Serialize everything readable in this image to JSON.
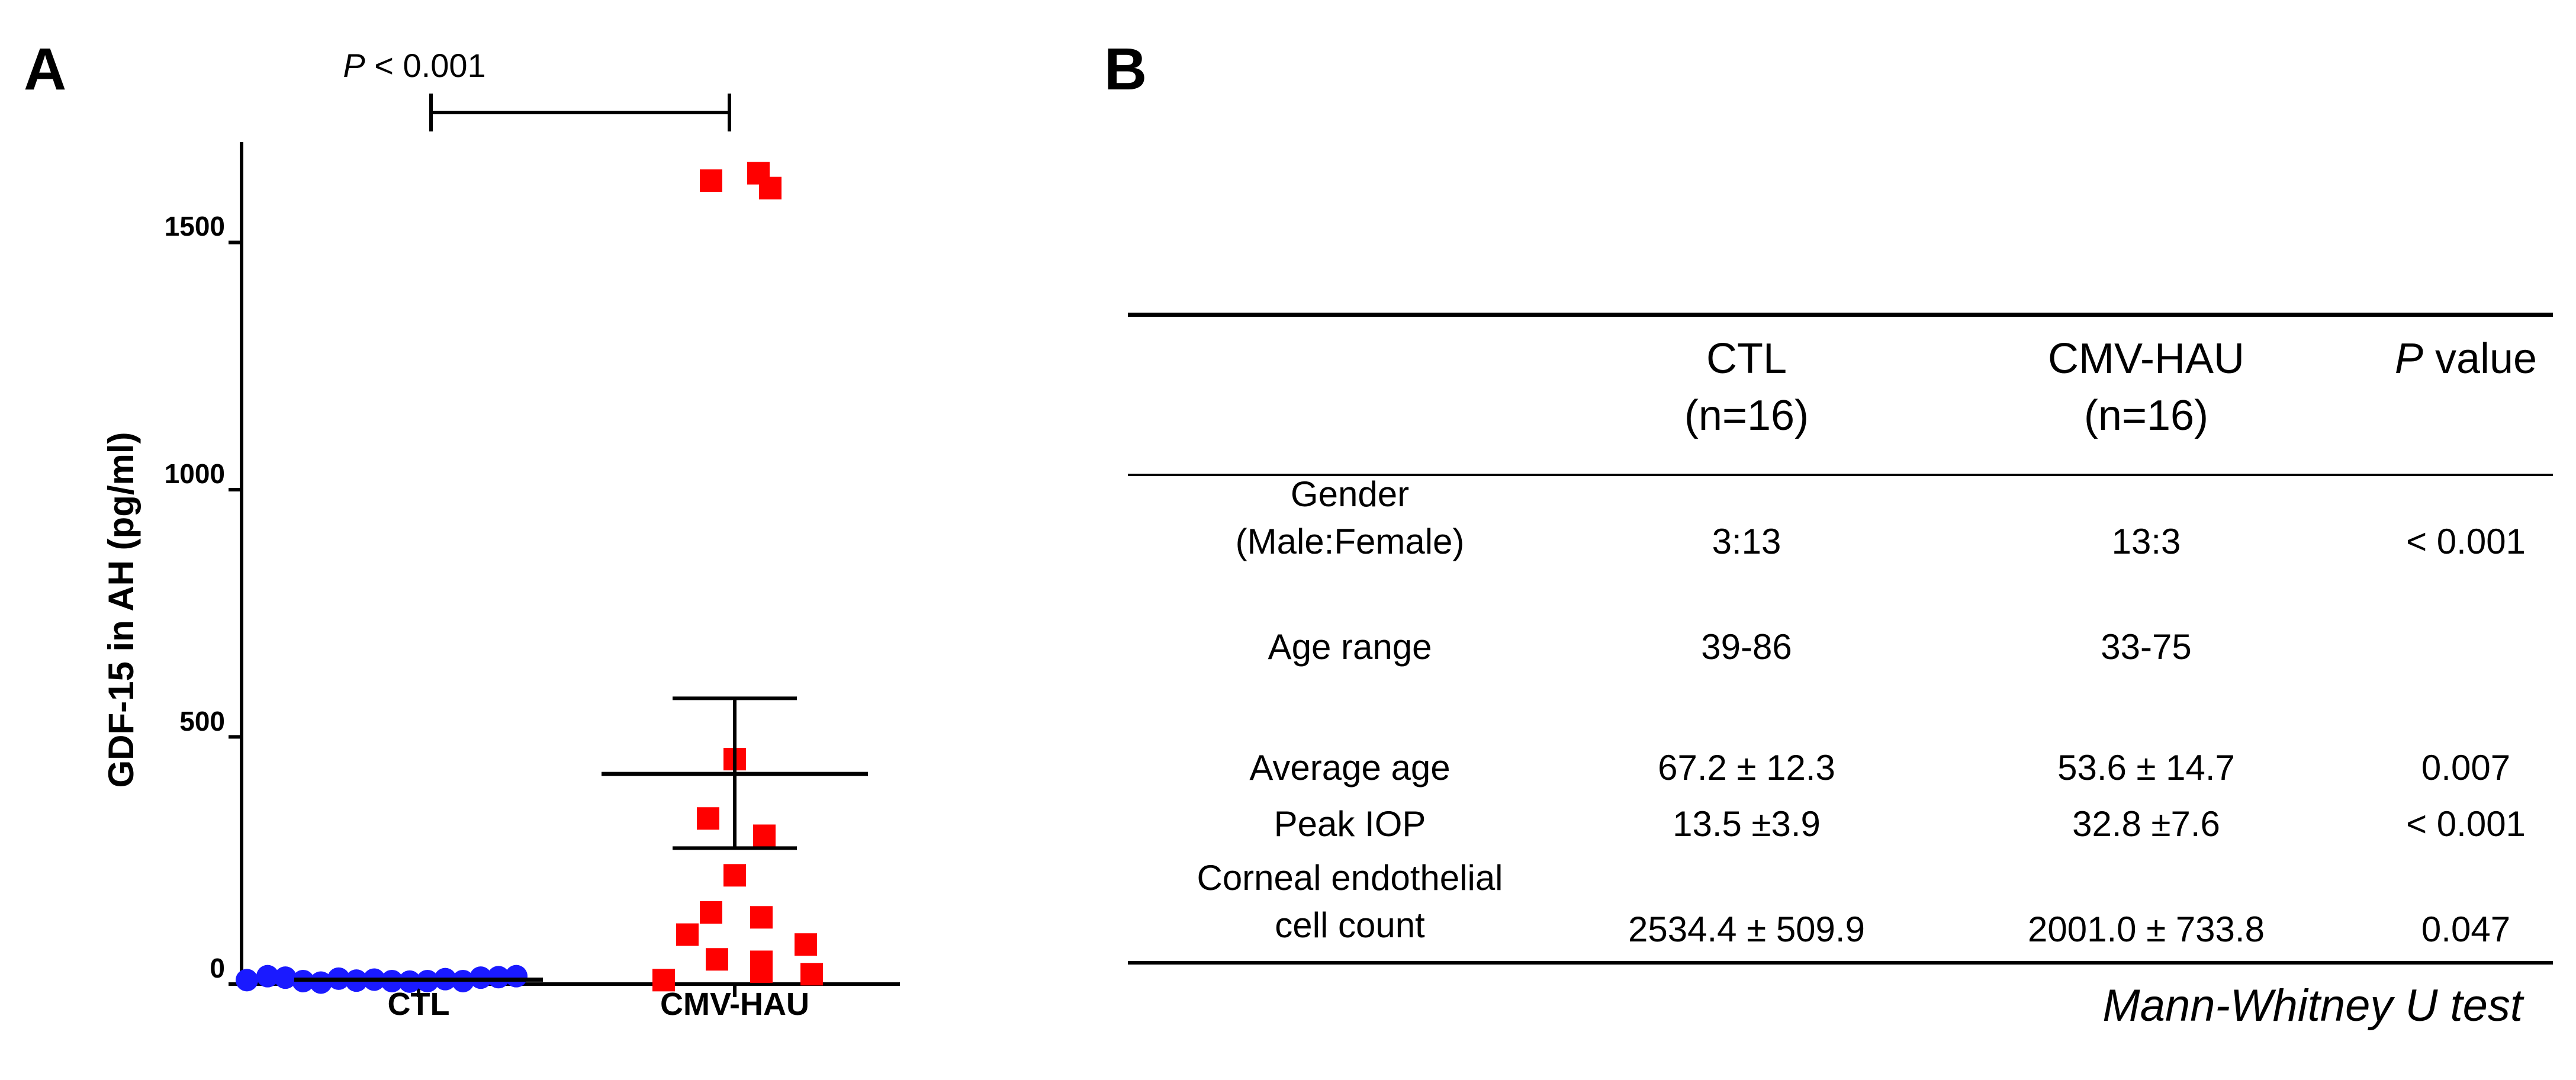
{
  "panels": {
    "a": "A",
    "b": "B"
  },
  "chart_data": {
    "type": "scatter",
    "ylabel": "GDF-15 in AH (pg/ml)",
    "xlabel": "",
    "categories": [
      "CTL",
      "CMV-HAU"
    ],
    "ylim": [
      0,
      1650
    ],
    "yticks": [
      0,
      500,
      1000,
      1500
    ],
    "significance": {
      "p_label": "P",
      "p_rest": " < 0.001",
      "between": [
        "CTL",
        "CMV-HAU"
      ]
    },
    "series": [
      {
        "category": "CTL",
        "marker": "circle",
        "color": "#1a1aff",
        "values": [
          8,
          16,
          13,
          6,
          3,
          11,
          7,
          9,
          6,
          5,
          6,
          10,
          6,
          13,
          14,
          16
        ],
        "mean": 9,
        "error_upper": 13,
        "error_lower": 5
      },
      {
        "category": "CMV-HAU",
        "marker": "square",
        "color": "#ff0000",
        "values": [
          1625,
          1610,
          1640,
          455,
          335,
          300,
          220,
          145,
          135,
          100,
          80,
          50,
          45,
          25,
          20,
          8
        ],
        "mean": 425,
        "error_upper": 578,
        "error_lower": 275
      }
    ]
  },
  "table": {
    "headers": [
      {
        "line1": "",
        "line2": ""
      },
      {
        "line1": "CTL",
        "line2": "(n=16)"
      },
      {
        "line1": "CMV-HAU",
        "line2": "(n=16)"
      },
      {
        "line1_italic": "P",
        "line1_rest": " value",
        "line2": ""
      }
    ],
    "rows": [
      {
        "label1": "Gender",
        "label2": "(Male:Female)",
        "ctl": "3:13",
        "cmv": "13:3",
        "p": "< 0.001"
      },
      {
        "label1": "Age range",
        "label2": "",
        "ctl": "39-86",
        "cmv": "33-75",
        "p": ""
      },
      {
        "label1": "Average age",
        "label2": "",
        "ctl": "67.2 ± 12.3",
        "cmv": "53.6 ± 14.7",
        "p": "0.007"
      },
      {
        "label1": "Peak IOP",
        "label2": "",
        "ctl": "13.5 ±3.9",
        "cmv": "32.8 ±7.6",
        "p": "< 0.001"
      },
      {
        "label1": "Corneal endothelial",
        "label2": "cell count",
        "ctl": "2534.4 ± 509.9",
        "cmv": "2001.0 ± 733.8",
        "p": "0.047"
      }
    ],
    "footnote": "Mann-Whitney U test"
  }
}
